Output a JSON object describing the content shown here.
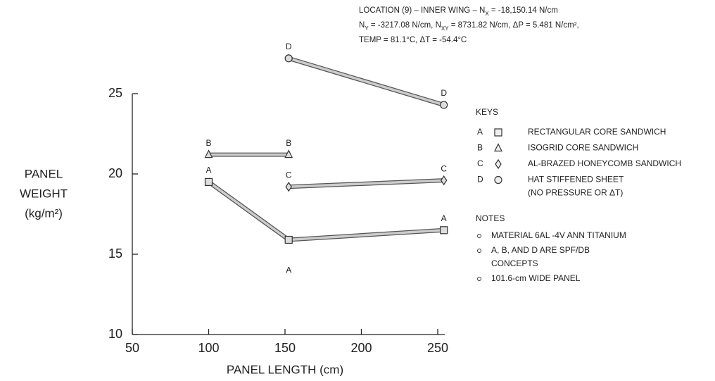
{
  "chart_data": {
    "type": "line",
    "annotation": [
      [
        "LOCATION (9) – INNER WING – N",
        "X",
        " = -18,150.14 N/cm"
      ],
      [
        "N",
        "Y",
        " = -3217.08 N/cm, N",
        "XY",
        " = 8731.82 N/cm, ΔP = 5.481 N/cm²,"
      ],
      [
        "TEMP = 81.1°C, ΔT = -54.4°C"
      ]
    ],
    "xlabel": "PANEL LENGTH (cm)",
    "ylabel": [
      "PANEL",
      "WEIGHT",
      "(kg/m²)"
    ],
    "xlim": [
      50,
      250
    ],
    "xticks": [
      50,
      100,
      150,
      200,
      250
    ],
    "ylim": [
      10,
      25
    ],
    "yticks": [
      10,
      15,
      20,
      25
    ],
    "legend_title": "KEYS",
    "series": [
      {
        "label": "A",
        "name": [
          "RECTANGULAR CORE SANDWICH"
        ],
        "marker": "square",
        "color": "#555",
        "x": [
          100,
          152.4,
          254
        ],
        "values": [
          19.5,
          15.9,
          16.5
        ]
      },
      {
        "label": "B",
        "name": [
          "ISOGRID CORE SANDWICH"
        ],
        "marker": "triangle",
        "color": "#555",
        "x": [
          100,
          152.4
        ],
        "values": [
          21.2,
          21.2
        ]
      },
      {
        "label": "C",
        "name": [
          "AL-BRAZED HONEYCOMB SANDWICH"
        ],
        "marker": "diamond",
        "color": "#555",
        "x": [
          152.4,
          254
        ],
        "values": [
          19.2,
          19.6
        ]
      },
      {
        "label": "D",
        "name": [
          "HAT STIFFENED SHEET",
          "(NO PRESSURE OR ΔT)"
        ],
        "marker": "circle",
        "color": "#555",
        "x": [
          152.4,
          254
        ],
        "values": [
          27.2,
          24.3
        ]
      }
    ],
    "notes_title": "NOTES",
    "notes": [
      [
        "MATERIAL 6AL -4V ANN TITANIUM"
      ],
      [
        "A, B, AND D ARE SPF/DB",
        "CONCEPTS"
      ],
      [
        "101.6-cm WIDE PANEL"
      ]
    ]
  }
}
